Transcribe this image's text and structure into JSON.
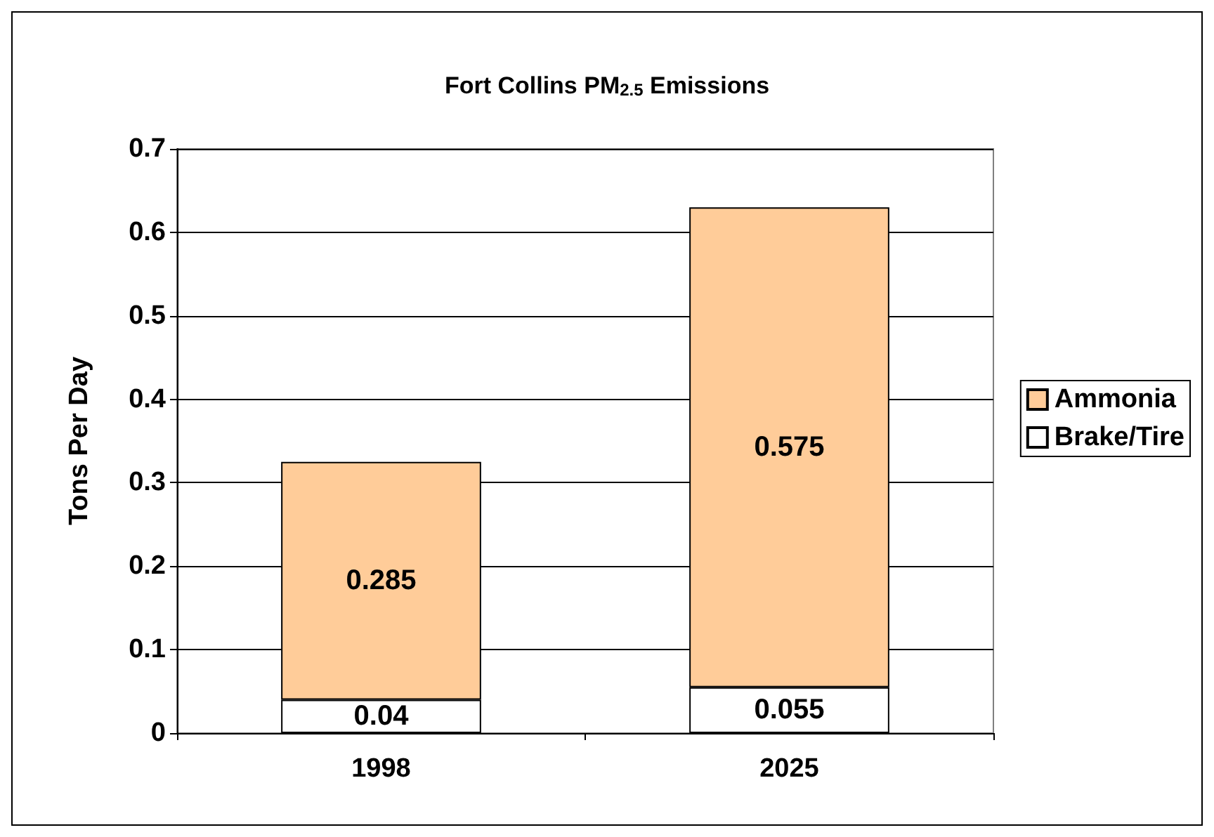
{
  "chart_data": {
    "type": "bar",
    "title": "Fort Collins PM$_{2.5}$ Emissions",
    "ylabel": "Tons Per Day",
    "categories": [
      "1998",
      "2025"
    ],
    "stacked": true,
    "data_labels": true,
    "grid": "y",
    "legend": "right",
    "series": [
      {
        "name": "Brake/Tire",
        "color": "#ffffff",
        "values": [
          0.04,
          0.055
        ]
      },
      {
        "name": "Ammonia",
        "color": "#ffcc99",
        "values": [
          0.285,
          0.575
        ]
      }
    ],
    "ylim": [
      0,
      0.7
    ],
    "yticks": [
      0,
      0.1,
      0.2,
      0.3,
      0.4,
      0.5,
      0.6,
      0.7
    ]
  }
}
